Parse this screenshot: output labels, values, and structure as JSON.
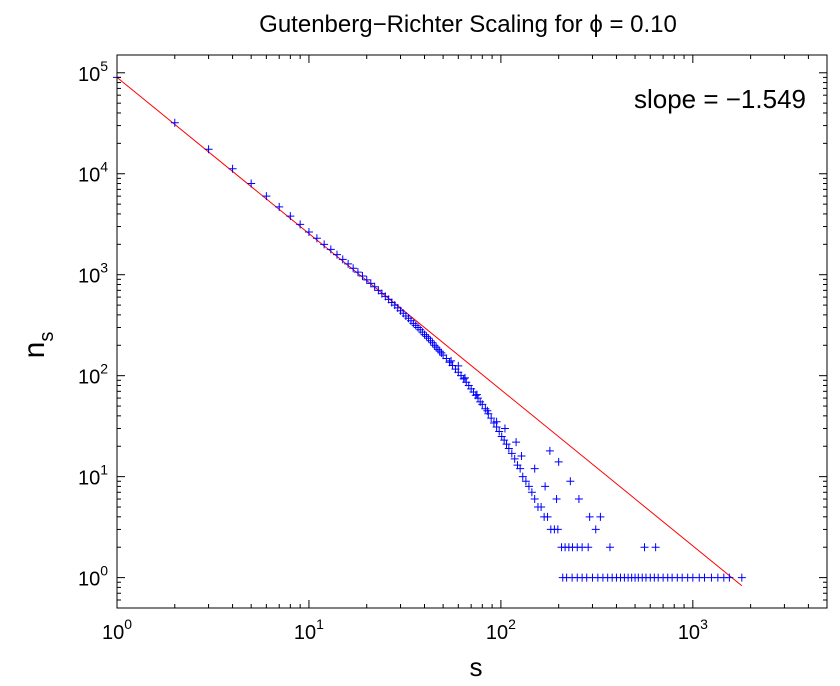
{
  "chart_data": {
    "type": "scatter",
    "title": "Gutenberg−Richter Scaling for ϕ = 0.10",
    "xlabel": "s",
    "ylabel": "n",
    "ylabel_subscript": "s",
    "x_scale": "log",
    "y_scale": "log",
    "xlim": [
      1,
      5000
    ],
    "ylim": [
      0.5,
      150000
    ],
    "grid": false,
    "x_ticks": [
      {
        "value": 1,
        "base": "10",
        "exp": "0"
      },
      {
        "value": 10,
        "base": "10",
        "exp": "1"
      },
      {
        "value": 100,
        "base": "10",
        "exp": "2"
      },
      {
        "value": 1000,
        "base": "10",
        "exp": "3"
      }
    ],
    "y_ticks": [
      {
        "value": 1,
        "base": "10",
        "exp": "0"
      },
      {
        "value": 10,
        "base": "10",
        "exp": "1"
      },
      {
        "value": 100,
        "base": "10",
        "exp": "2"
      },
      {
        "value": 1000,
        "base": "10",
        "exp": "3"
      },
      {
        "value": 10000,
        "base": "10",
        "exp": "4"
      },
      {
        "value": 100000,
        "base": "10",
        "exp": "5"
      }
    ],
    "annotation": "slope = −1.549",
    "marker_color": "#0000ff",
    "fit_color": "#ff0000",
    "fit_line": {
      "slope": -1.549,
      "x": [
        1,
        1800
      ],
      "y": [
        90000,
        0.83
      ]
    },
    "series": [
      {
        "marker": "+",
        "points": [
          [
            1,
            90000
          ],
          [
            2,
            32000
          ],
          [
            3,
            17500
          ],
          [
            4,
            11200
          ],
          [
            5,
            8000
          ],
          [
            6,
            6000
          ],
          [
            7,
            4700
          ],
          [
            8,
            3800
          ],
          [
            9,
            3150
          ],
          [
            10,
            2650
          ],
          [
            11,
            2300
          ],
          [
            12,
            2000
          ],
          [
            13,
            1780
          ],
          [
            14,
            1580
          ],
          [
            15,
            1420
          ],
          [
            16,
            1280
          ],
          [
            17,
            1160
          ],
          [
            18,
            1060
          ],
          [
            19,
            970
          ],
          [
            20,
            890
          ],
          [
            21,
            820
          ],
          [
            22,
            760
          ],
          [
            23,
            700
          ],
          [
            24,
            650
          ],
          [
            25,
            610
          ],
          [
            26,
            570
          ],
          [
            27,
            530
          ],
          [
            28,
            500
          ],
          [
            29,
            470
          ],
          [
            30,
            440
          ],
          [
            31,
            415
          ],
          [
            32,
            390
          ],
          [
            33,
            370
          ],
          [
            34,
            350
          ],
          [
            35,
            330
          ],
          [
            36,
            315
          ],
          [
            37,
            300
          ],
          [
            38,
            285
          ],
          [
            39,
            270
          ],
          [
            40,
            255
          ],
          [
            41,
            245
          ],
          [
            42,
            235
          ],
          [
            43,
            222
          ],
          [
            44,
            212
          ],
          [
            45,
            200
          ],
          [
            46,
            192
          ],
          [
            47,
            182
          ],
          [
            48,
            175
          ],
          [
            49,
            168
          ],
          [
            50,
            160
          ],
          [
            52,
            148
          ],
          [
            54,
            136
          ],
          [
            56,
            126
          ],
          [
            58,
            116
          ],
          [
            60,
            108
          ],
          [
            62,
            100
          ],
          [
            64,
            93
          ],
          [
            66,
            86
          ],
          [
            68,
            80
          ],
          [
            70,
            74
          ],
          [
            72,
            69
          ],
          [
            74,
            64
          ],
          [
            76,
            60
          ],
          [
            78,
            55
          ],
          [
            80,
            52
          ],
          [
            83,
            47
          ],
          [
            86,
            42
          ],
          [
            89,
            38
          ],
          [
            92,
            34
          ],
          [
            95,
            31
          ],
          [
            98,
            28
          ],
          [
            101,
            25
          ],
          [
            104,
            23
          ],
          [
            107,
            21
          ],
          [
            110,
            19
          ],
          [
            114,
            17
          ],
          [
            118,
            15
          ],
          [
            122,
            13
          ],
          [
            126,
            12
          ],
          [
            130,
            10
          ],
          [
            135,
            9
          ],
          [
            140,
            8
          ],
          [
            145,
            7
          ],
          [
            150,
            6
          ],
          [
            156,
            5
          ],
          [
            162,
            5
          ],
          [
            168,
            4
          ],
          [
            175,
            4
          ],
          [
            182,
            3
          ],
          [
            190,
            3
          ],
          [
            198,
            3
          ],
          [
            207,
            2
          ],
          [
            216,
            2
          ],
          [
            226,
            2
          ],
          [
            236,
            2
          ],
          [
            250,
            2
          ],
          [
            265,
            2
          ],
          [
            285,
            2
          ],
          [
            312,
            3
          ],
          [
            370,
            2
          ],
          [
            560,
            2
          ],
          [
            640,
            2
          ],
          [
            180,
            18
          ],
          [
            200,
            14
          ],
          [
            230,
            9
          ],
          [
            255,
            6
          ],
          [
            290,
            4
          ],
          [
            330,
            4
          ],
          [
            150,
            12
          ],
          [
            120,
            22
          ],
          [
            95,
            35
          ],
          [
            85,
            45
          ],
          [
            75,
            65
          ],
          [
            60,
            125
          ],
          [
            55,
            140
          ],
          [
            65,
            95
          ],
          [
            105,
            30
          ],
          [
            128,
            16
          ],
          [
            170,
            8
          ],
          [
            195,
            6
          ],
          [
            210,
            1
          ],
          [
            220,
            1
          ],
          [
            235,
            1
          ],
          [
            250,
            1
          ],
          [
            265,
            1
          ],
          [
            280,
            1
          ],
          [
            300,
            1
          ],
          [
            320,
            1
          ],
          [
            340,
            1
          ],
          [
            360,
            1
          ],
          [
            380,
            1
          ],
          [
            400,
            1
          ],
          [
            420,
            1
          ],
          [
            440,
            1
          ],
          [
            460,
            1
          ],
          [
            480,
            1
          ],
          [
            500,
            1
          ],
          [
            520,
            1
          ],
          [
            545,
            1
          ],
          [
            570,
            1
          ],
          [
            600,
            1
          ],
          [
            630,
            1
          ],
          [
            660,
            1
          ],
          [
            700,
            1
          ],
          [
            740,
            1
          ],
          [
            780,
            1
          ],
          [
            830,
            1
          ],
          [
            880,
            1
          ],
          [
            940,
            1
          ],
          [
            1000,
            1
          ],
          [
            1080,
            1
          ],
          [
            1150,
            1
          ],
          [
            1250,
            1
          ],
          [
            1350,
            1
          ],
          [
            1450,
            1
          ],
          [
            1550,
            1
          ],
          [
            1800,
            1
          ]
        ]
      }
    ]
  }
}
